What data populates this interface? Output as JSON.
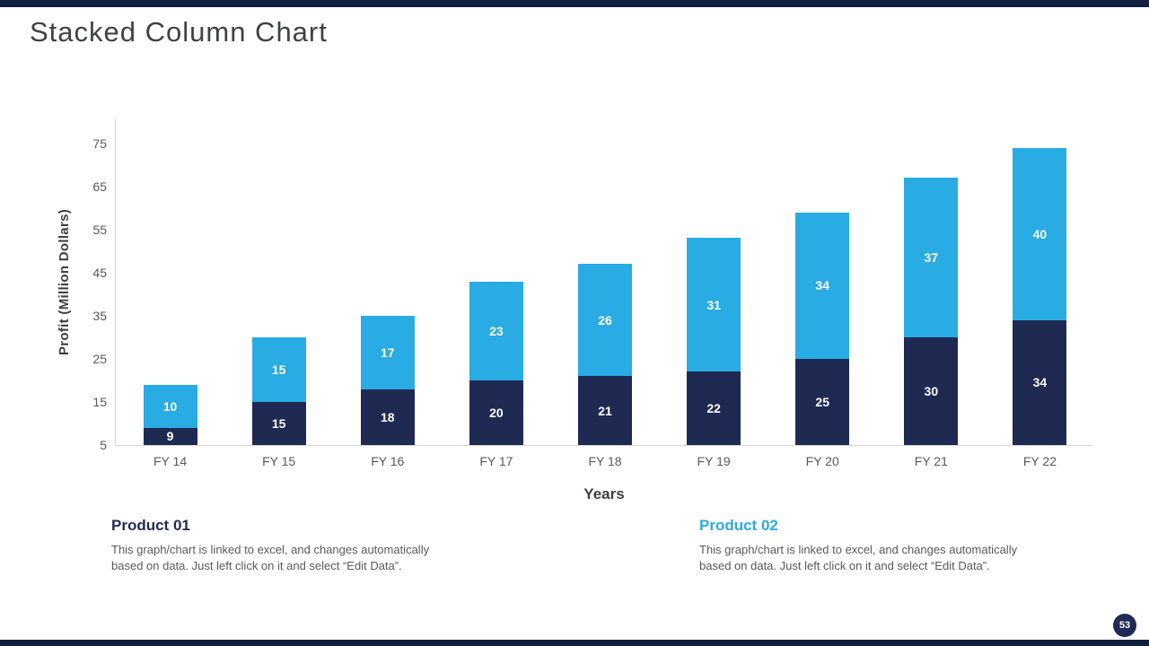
{
  "page": {
    "title": "Stacked Column Chart",
    "page_number": "53"
  },
  "colors": {
    "series1": "#1f2a53",
    "series2": "#29abe3",
    "accent_bar": "#131f3e",
    "text_gray": "#595959"
  },
  "chart_data": {
    "type": "bar",
    "stacked": true,
    "title": "",
    "categories": [
      "FY 14",
      "FY 15",
      "FY 16",
      "FY 17",
      "FY 18",
      "FY 19",
      "FY 20",
      "FY 21",
      "FY 22"
    ],
    "series": [
      {
        "name": "Product 01",
        "color": "#1f2a53",
        "values": [
          9,
          15,
          18,
          20,
          21,
          22,
          25,
          30,
          34
        ]
      },
      {
        "name": "Product 02",
        "color": "#29abe3",
        "values": [
          10,
          15,
          17,
          23,
          26,
          31,
          34,
          37,
          40
        ]
      }
    ],
    "totals": [
      19,
      30,
      35,
      43,
      47,
      53,
      59,
      67,
      74
    ],
    "xlabel": "Years",
    "ylabel": "Profit  (Million Dollars)",
    "yticks": [
      5,
      15,
      25,
      35,
      45,
      55,
      65,
      75
    ],
    "ymin": 5,
    "ymax": 81,
    "grid": false,
    "legend_position": "below"
  },
  "legend": {
    "product1": {
      "title": "Product 01",
      "description": "This graph/chart is linked to excel, and changes automatically based on data. Just left click on it and select “Edit Data”."
    },
    "product2": {
      "title": "Product 02",
      "description": "This graph/chart is linked to excel, and changes automatically based on data. Just left click on it and select “Edit Data”."
    }
  }
}
